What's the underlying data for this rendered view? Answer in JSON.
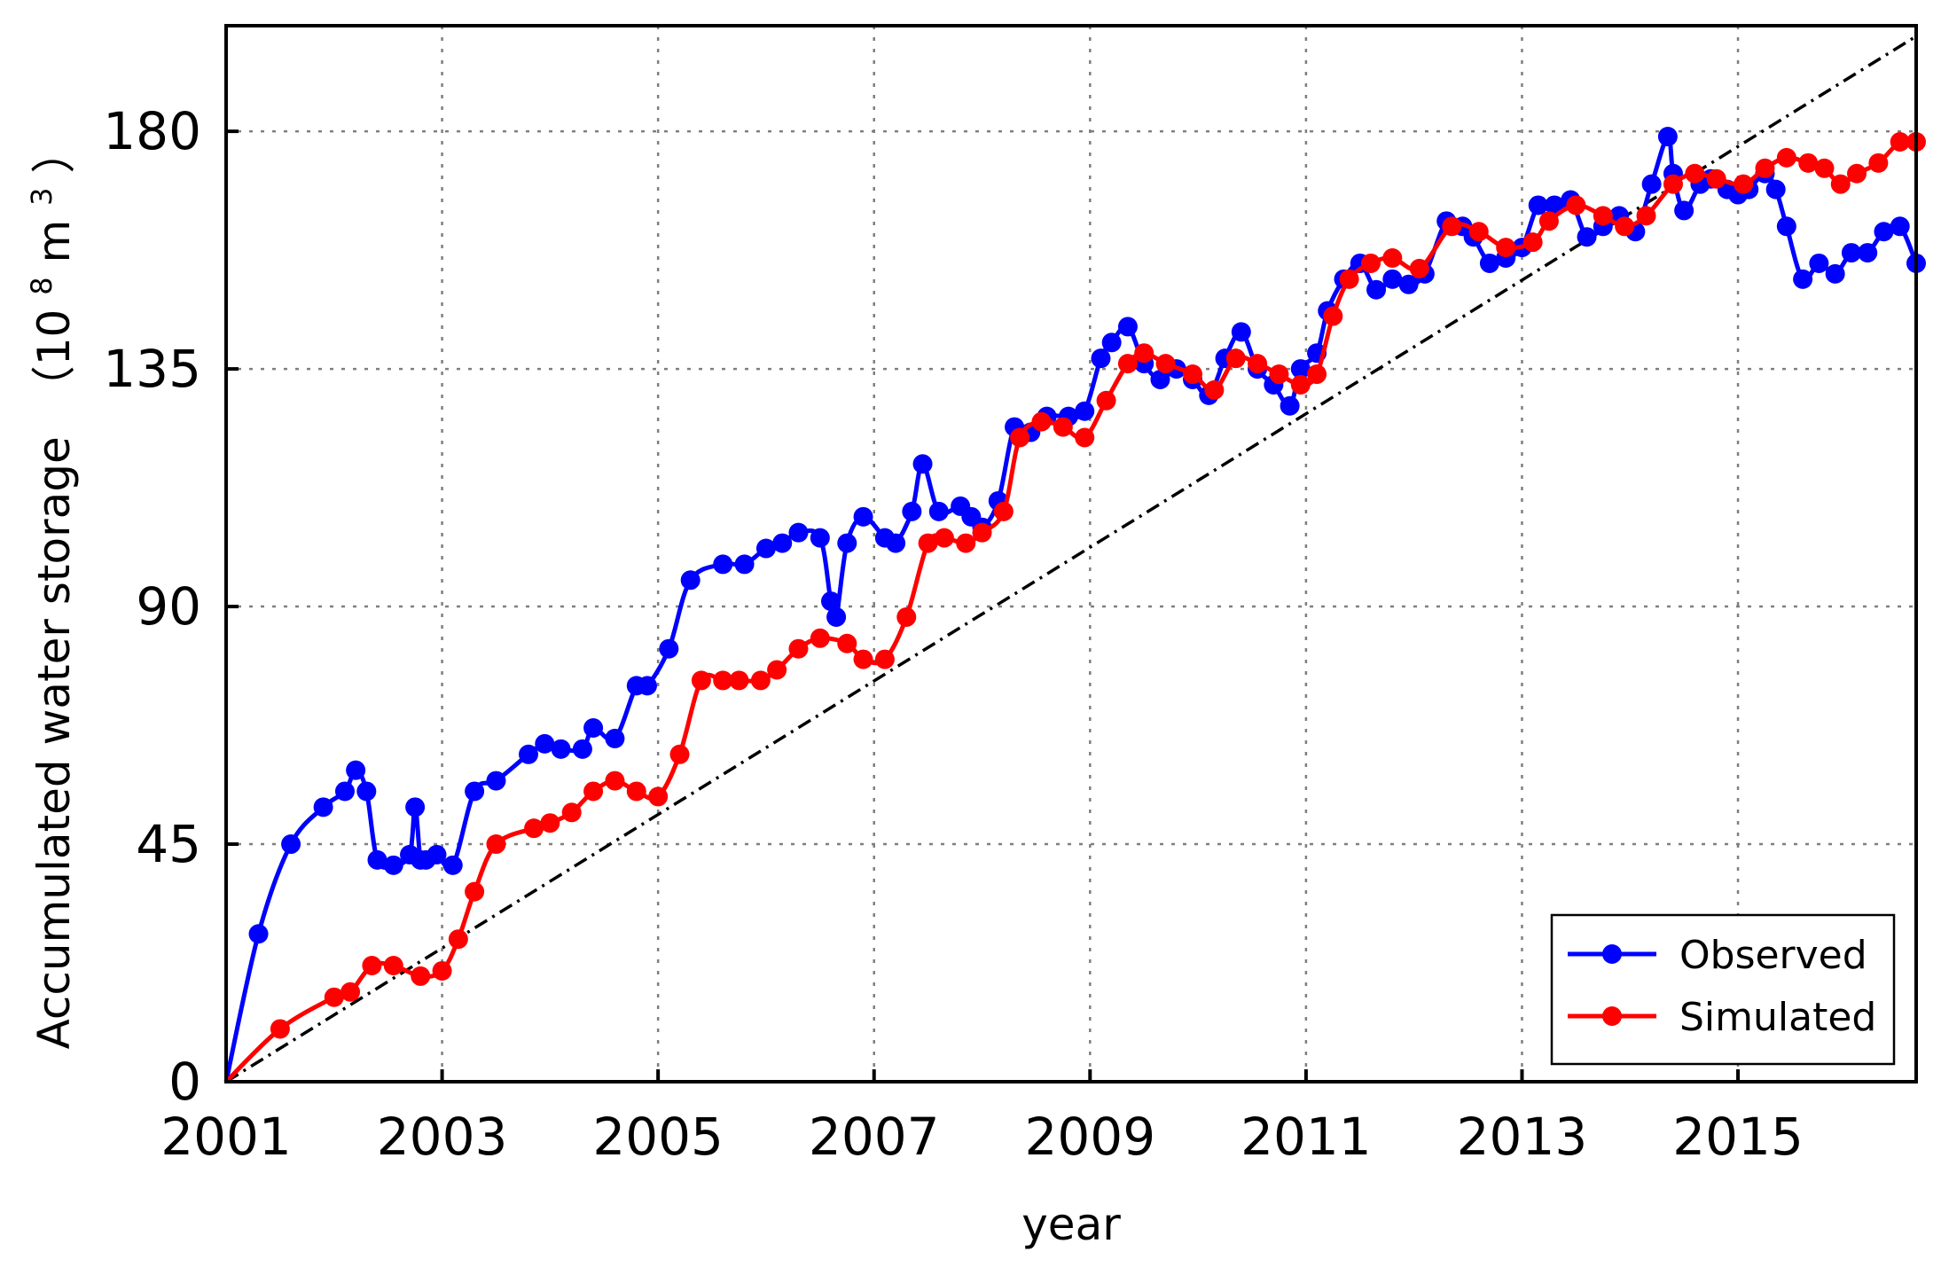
{
  "chart_data": {
    "type": "line",
    "title": "",
    "xlabel": "year",
    "ylabel": "Accumulated water storage",
    "ylabel_unit": "（10",
    "ylabel_unit_exp": "8",
    "ylabel_unit_m": "m",
    "ylabel_unit_exp2": "3",
    "ylabel_unit_close": "）",
    "xlim": [
      2001,
      2016.65
    ],
    "ylim": [
      0,
      200
    ],
    "x_ticks": [
      2001,
      2003,
      2005,
      2007,
      2009,
      2011,
      2013,
      2015
    ],
    "x_tick_labels": [
      "2001",
      "2003",
      "2005",
      "2007",
      "2009",
      "2011",
      "2013",
      "2015"
    ],
    "y_ticks": [
      0,
      45,
      90,
      135,
      180
    ],
    "y_tick_labels": [
      "0",
      "45",
      "90",
      "135",
      "180"
    ],
    "grid": true,
    "legend_position": "bottom-right",
    "reference_line": {
      "style": "dash-dot",
      "color": "#000000",
      "x": [
        2001,
        2016.65
      ],
      "y": [
        0,
        198
      ]
    },
    "series": [
      {
        "name": "Observed",
        "color": "#0000ff",
        "x": [
          2001.0,
          2001.3,
          2001.6,
          2001.9,
          2002.1,
          2002.2,
          2002.3,
          2002.4,
          2002.55,
          2002.7,
          2002.75,
          2002.8,
          2002.85,
          2002.95,
          2003.1,
          2003.3,
          2003.5,
          2003.8,
          2003.95,
          2004.1,
          2004.3,
          2004.4,
          2004.6,
          2004.8,
          2004.9,
          2005.1,
          2005.3,
          2005.6,
          2005.8,
          2006.0,
          2006.15,
          2006.3,
          2006.5,
          2006.6,
          2006.65,
          2006.75,
          2006.9,
          2007.1,
          2007.2,
          2007.35,
          2007.45,
          2007.6,
          2007.8,
          2007.9,
          2008.0,
          2008.15,
          2008.3,
          2008.45,
          2008.6,
          2008.8,
          2008.95,
          2009.1,
          2009.2,
          2009.35,
          2009.5,
          2009.65,
          2009.8,
          2009.95,
          2010.1,
          2010.25,
          2010.4,
          2010.55,
          2010.7,
          2010.85,
          2010.95,
          2011.1,
          2011.2,
          2011.35,
          2011.5,
          2011.65,
          2011.8,
          2011.95,
          2012.1,
          2012.3,
          2012.45,
          2012.55,
          2012.7,
          2012.85,
          2013.0,
          2013.15,
          2013.3,
          2013.45,
          2013.6,
          2013.75,
          2013.9,
          2014.05,
          2014.2,
          2014.35,
          2014.4,
          2014.5,
          2014.65,
          2014.75,
          2014.9,
          2015.0,
          2015.1,
          2015.25,
          2015.35,
          2015.45,
          2015.6,
          2015.75,
          2015.9,
          2016.05,
          2016.2,
          2016.35,
          2016.5,
          2016.65
        ],
        "y": [
          0,
          28,
          45,
          52,
          55,
          59,
          55,
          42,
          41,
          43,
          52,
          42,
          42,
          43,
          41,
          55,
          57,
          62,
          64,
          63,
          63,
          67,
          65,
          75,
          75,
          82,
          95,
          98,
          98,
          101,
          102,
          104,
          103,
          91,
          88,
          102,
          107,
          103,
          102,
          108,
          117,
          108,
          109,
          107,
          105,
          110,
          124,
          123,
          126,
          126,
          127,
          137,
          140,
          143,
          136,
          133,
          135,
          133,
          130,
          137,
          142,
          135,
          132,
          128,
          135,
          138,
          146,
          152,
          155,
          150,
          152,
          151,
          153,
          163,
          162,
          160,
          155,
          156,
          158,
          166,
          166,
          167,
          160,
          162,
          164,
          161,
          170,
          179,
          172,
          165,
          170,
          171,
          169,
          168,
          169,
          172,
          169,
          162,
          152,
          155,
          153,
          157,
          157,
          161,
          162,
          155
        ]
      },
      {
        "name": "Simulated",
        "color": "#ff0000",
        "x": [
          2001.0,
          2001.5,
          2002.0,
          2002.15,
          2002.35,
          2002.55,
          2002.8,
          2003.0,
          2003.15,
          2003.3,
          2003.5,
          2003.85,
          2004.0,
          2004.2,
          2004.4,
          2004.6,
          2004.8,
          2005.0,
          2005.2,
          2005.4,
          2005.6,
          2005.75,
          2005.95,
          2006.1,
          2006.3,
          2006.5,
          2006.75,
          2006.9,
          2007.1,
          2007.3,
          2007.5,
          2007.65,
          2007.85,
          2008.0,
          2008.2,
          2008.35,
          2008.55,
          2008.75,
          2008.95,
          2009.15,
          2009.35,
          2009.5,
          2009.7,
          2009.95,
          2010.15,
          2010.35,
          2010.55,
          2010.75,
          2010.95,
          2011.1,
          2011.25,
          2011.4,
          2011.6,
          2011.8,
          2012.05,
          2012.35,
          2012.6,
          2012.85,
          2013.1,
          2013.25,
          2013.5,
          2013.75,
          2013.95,
          2014.15,
          2014.4,
          2014.6,
          2014.8,
          2015.05,
          2015.25,
          2015.45,
          2015.65,
          2015.8,
          2015.95,
          2016.1,
          2016.3,
          2016.5,
          2016.65
        ],
        "y": [
          0,
          10,
          16,
          17,
          22,
          22,
          20,
          21,
          27,
          36,
          45,
          48,
          49,
          51,
          55,
          57,
          55,
          54,
          62,
          76,
          76,
          76,
          76,
          78,
          82,
          84,
          83,
          80,
          80,
          88,
          102,
          103,
          102,
          104,
          108,
          122,
          125,
          124,
          122,
          129,
          136,
          138,
          136,
          134,
          131,
          137,
          136,
          134,
          132,
          134,
          145,
          152,
          155,
          156,
          154,
          162,
          161,
          158,
          159,
          163,
          166,
          164,
          162,
          164,
          170,
          172,
          171,
          170,
          173,
          175,
          174,
          173,
          170,
          172,
          174,
          178,
          178
        ]
      }
    ]
  }
}
